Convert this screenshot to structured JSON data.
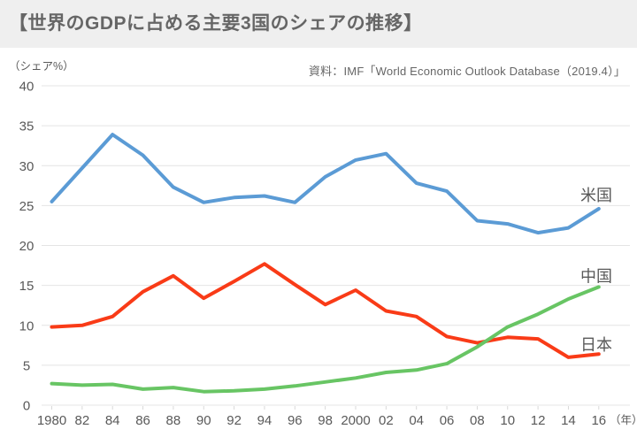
{
  "header": {
    "title": "【世界のGDPに占める主要3国のシェアの推移】"
  },
  "chart": {
    "unit_label": "（シェア%）",
    "source": "資料：IMF「World Economic Outlook Database（2019.4）」",
    "x_axis_suffix": "（年）"
  },
  "chart_data": {
    "type": "line",
    "title": "世界のGDPに占める主要3国のシェアの推移",
    "ylabel": "シェア%",
    "xlabel": "年",
    "ylim": [
      0,
      40
    ],
    "y_ticks": [
      0,
      5,
      10,
      15,
      20,
      25,
      30,
      35,
      40
    ],
    "grid": true,
    "legend_position": "right-of-line-end",
    "x_interval_years": 2,
    "categories": [
      "1980",
      "82",
      "84",
      "86",
      "88",
      "90",
      "92",
      "94",
      "96",
      "98",
      "2000",
      "02",
      "04",
      "06",
      "08",
      "10",
      "12",
      "14",
      "16"
    ],
    "series": [
      {
        "id": "us",
        "name": "米国",
        "color": "#5b9bd5",
        "z": 1,
        "values": [
          25.5,
          29.7,
          33.9,
          31.3,
          27.3,
          25.4,
          26.0,
          26.2,
          25.4,
          28.6,
          30.7,
          31.5,
          27.8,
          26.8,
          23.1,
          22.7,
          21.6,
          22.2,
          24.6
        ]
      },
      {
        "id": "china",
        "name": "中国",
        "color": "#68c564",
        "z": 3,
        "values": [
          2.7,
          2.5,
          2.6,
          2.0,
          2.2,
          1.7,
          1.8,
          2.0,
          2.4,
          2.9,
          3.4,
          4.1,
          4.4,
          5.2,
          7.3,
          9.8,
          11.4,
          13.3,
          14.8
        ]
      },
      {
        "id": "japan",
        "name": "日本",
        "color": "#f93b17",
        "z": 2,
        "values": [
          9.8,
          10.0,
          11.1,
          14.2,
          16.2,
          13.4,
          15.5,
          17.7,
          15.1,
          12.6,
          14.4,
          11.8,
          11.1,
          8.6,
          7.8,
          8.5,
          8.3,
          6.0,
          6.4
        ]
      }
    ],
    "colors": {
      "grid": "#e4e4e4",
      "axis_tick": "#d9d9d9",
      "tick_text": "#595959",
      "series_label_text": "#595959"
    }
  }
}
